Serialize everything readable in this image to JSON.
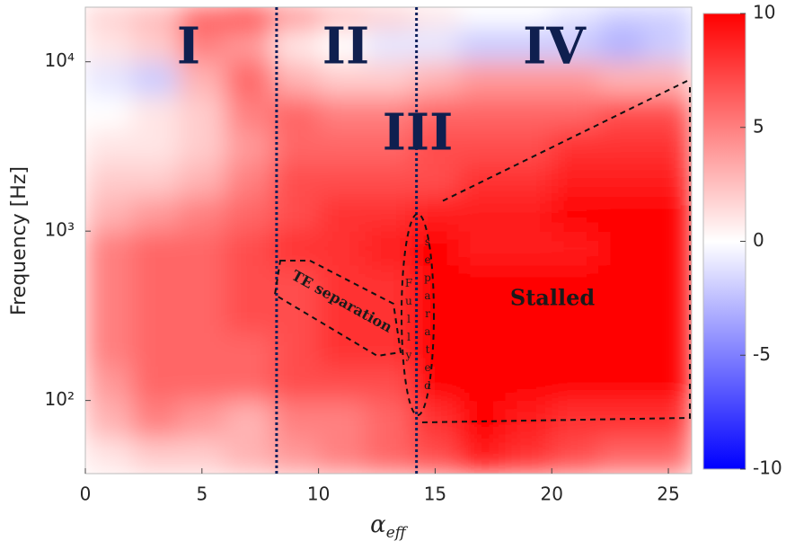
{
  "chart_data": {
    "type": "heatmap",
    "y_label": "Frequency [Hz]",
    "x_label": {
      "base": "α",
      "subscript": "eff"
    },
    "xlim": [
      0,
      26
    ],
    "xticks": [
      0,
      5,
      10,
      15,
      20,
      25
    ],
    "ylim": [
      37,
      21000
    ],
    "log_y": true,
    "yticks": [
      {
        "value": 100,
        "label": "10²"
      },
      {
        "value": 1000,
        "label": "10³"
      },
      {
        "value": 10000,
        "label": "10⁴"
      }
    ],
    "x_edges": [
      0,
      2,
      4,
      6,
      8,
      10,
      12,
      14,
      16,
      18,
      20,
      22,
      24,
      26
    ],
    "y_edges": [
      37,
      60,
      100,
      160,
      250,
      400,
      630,
      1000,
      1600,
      2500,
      4000,
      6300,
      10000,
      16000,
      21000
    ],
    "z": [
      [
        1,
        2,
        2,
        3,
        4,
        5,
        6,
        7,
        9,
        8,
        7,
        6,
        6
      ],
      [
        3,
        5,
        4,
        3,
        5,
        5,
        6,
        8,
        10,
        9,
        8,
        8,
        8
      ],
      [
        4,
        6,
        6,
        6,
        7,
        7,
        7,
        10,
        10,
        10,
        10,
        10,
        10
      ],
      [
        5,
        6,
        6,
        6,
        7,
        8,
        8,
        10,
        10,
        10,
        10,
        10,
        10
      ],
      [
        5,
        6,
        6,
        7,
        7,
        8,
        8,
        10,
        10,
        10,
        10,
        10,
        10
      ],
      [
        5,
        6,
        6,
        7,
        7,
        8,
        8,
        10,
        10,
        10,
        10,
        10,
        10
      ],
      [
        5,
        6,
        6,
        7,
        8,
        8,
        9,
        10,
        9,
        9,
        9,
        10,
        10
      ],
      [
        3,
        4,
        5,
        6,
        7,
        8,
        8,
        9,
        9,
        9,
        10,
        10,
        10
      ],
      [
        2,
        2,
        3,
        5,
        7,
        7,
        7,
        7,
        8,
        8,
        9,
        9,
        9
      ],
      [
        1,
        1,
        2,
        4,
        6,
        6,
        6,
        7,
        7,
        7,
        8,
        8,
        8
      ],
      [
        0,
        1,
        2,
        5,
        6,
        5,
        5,
        6,
        6,
        6,
        6,
        7,
        7
      ],
      [
        -1,
        -2,
        3,
        6,
        3,
        2,
        2,
        3,
        4,
        4,
        4,
        3,
        3
      ],
      [
        1,
        2,
        5,
        4,
        1,
        0,
        -1,
        -1,
        -2,
        -2,
        -2,
        -3,
        -2
      ],
      [
        2,
        3,
        7,
        9,
        5,
        3,
        2,
        1,
        0,
        0,
        -1,
        -2,
        -2
      ]
    ],
    "colormap": {
      "low": "#0000ff",
      "mid": "#ffffff",
      "high": "#ff0000"
    },
    "clim": [
      -10,
      10
    ],
    "cticks": [
      -10,
      -5,
      0,
      5,
      10
    ],
    "vlines": [
      8.2,
      14.2
    ],
    "vline_color": "#0b1f5c",
    "annotations": {
      "region_1": "I",
      "region_2": "II",
      "region_3": "III",
      "region_4": "IV",
      "te_separation": "TE separation",
      "fully": "Fully",
      "separated": "separated",
      "stalled": "Stalled"
    }
  }
}
